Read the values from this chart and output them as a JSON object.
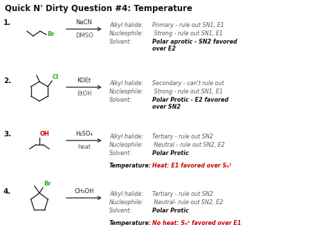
{
  "title": "Quick N' Dirty Question #4: Temperature",
  "bg_color": "#ffffff",
  "title_color": "#111111",
  "title_fontsize": 8.5,
  "rows": [
    {
      "number": "1.",
      "reagent_top": "NaCN",
      "reagent_bot": "DMSO",
      "label1": "Alkyl halide:",
      "text1": "Primary - rule out SN1, E1",
      "label2": "Nucleophile:",
      "text2": " Strong - rule out SN1, E1",
      "label3": "Solvent:",
      "text3_bold": "Polar aprotic - SN2 favored\nover E2",
      "label4": null,
      "text4": null,
      "text4_color": "#cc0000",
      "halide_color": "#22aa22",
      "structure": "primary_br"
    },
    {
      "number": "2.",
      "reagent_top": "KOEt",
      "reagent_bot": "EtOH",
      "label1": "Alkyl halide:",
      "text1": "Secondary - can't rule out",
      "label2": "Nucleophile:",
      "text2": " Strong - rule out SN1, E1",
      "label3": "Solvent:",
      "text3_bold": "Polar Protic - E2 favored\nover SN2",
      "label4": null,
      "text4": null,
      "text4_color": "#cc0000",
      "halide_color": "#22aa22",
      "structure": "secondary_cl"
    },
    {
      "number": "3.",
      "reagent_top": "H₂SO₄",
      "reagent_bot": "heat",
      "label1": "Alkyl halide:",
      "text1": "Tertiary - rule out SN2",
      "label2": "Nucleophile:",
      "text2": " Neutral - rule out SN2, E2",
      "label3": "Solvent:",
      "text3_bold": "Polar Protic",
      "label4": "Temperature:",
      "text4": "Heat: E1 favored over Sₙ¹",
      "text4_color": "#cc0000",
      "halide_color": "#cc0000",
      "structure": "tertiary_oh"
    },
    {
      "number": "4.",
      "reagent_top": "CH₃OH",
      "reagent_bot": "",
      "label1": "Alkyl halide:",
      "text1": "Tertiary - rule out SN2",
      "label2": "Nucleophile:",
      "text2": " Neutral- rule out SN2, E2",
      "label3": "Solvent:",
      "text3_bold": "Polar Protic",
      "label4": "Temperature:",
      "text4": "No heat: Sₙ¹ favored over E1",
      "text4_color": "#cc0000",
      "halide_color": "#22aa22",
      "structure": "tertiary_br_cyclo"
    }
  ]
}
